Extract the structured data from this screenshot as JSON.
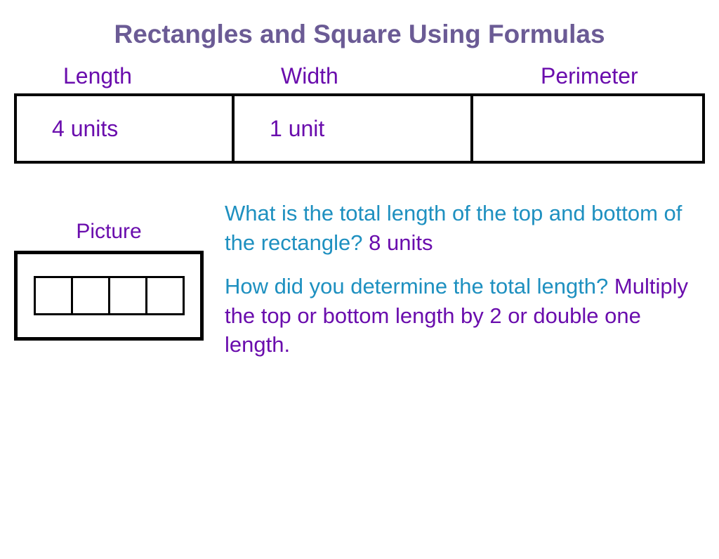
{
  "title": "Rectangles and Square Using Formulas",
  "colors": {
    "title": "#6b5b95",
    "purple": "#6a0dad",
    "blue": "#1e90c0",
    "border": "#000000",
    "background": "#ffffff"
  },
  "table": {
    "headers": {
      "length": "Length",
      "width": "Width",
      "perimeter": "Perimeter"
    },
    "row": {
      "length": "4 units",
      "width": "1 unit",
      "perimeter": ""
    }
  },
  "picture": {
    "label": "Picture",
    "unit_count": 4
  },
  "q1": {
    "question": "What is the total length of the top and bottom of the rectangle?",
    "answer": "8 units"
  },
  "q2": {
    "question": "How did you determine the total length?",
    "answer": "Multiply the top or bottom length by 2 or double one length."
  },
  "fonts": {
    "title_size": 37,
    "header_size": 32,
    "body_size": 31
  }
}
